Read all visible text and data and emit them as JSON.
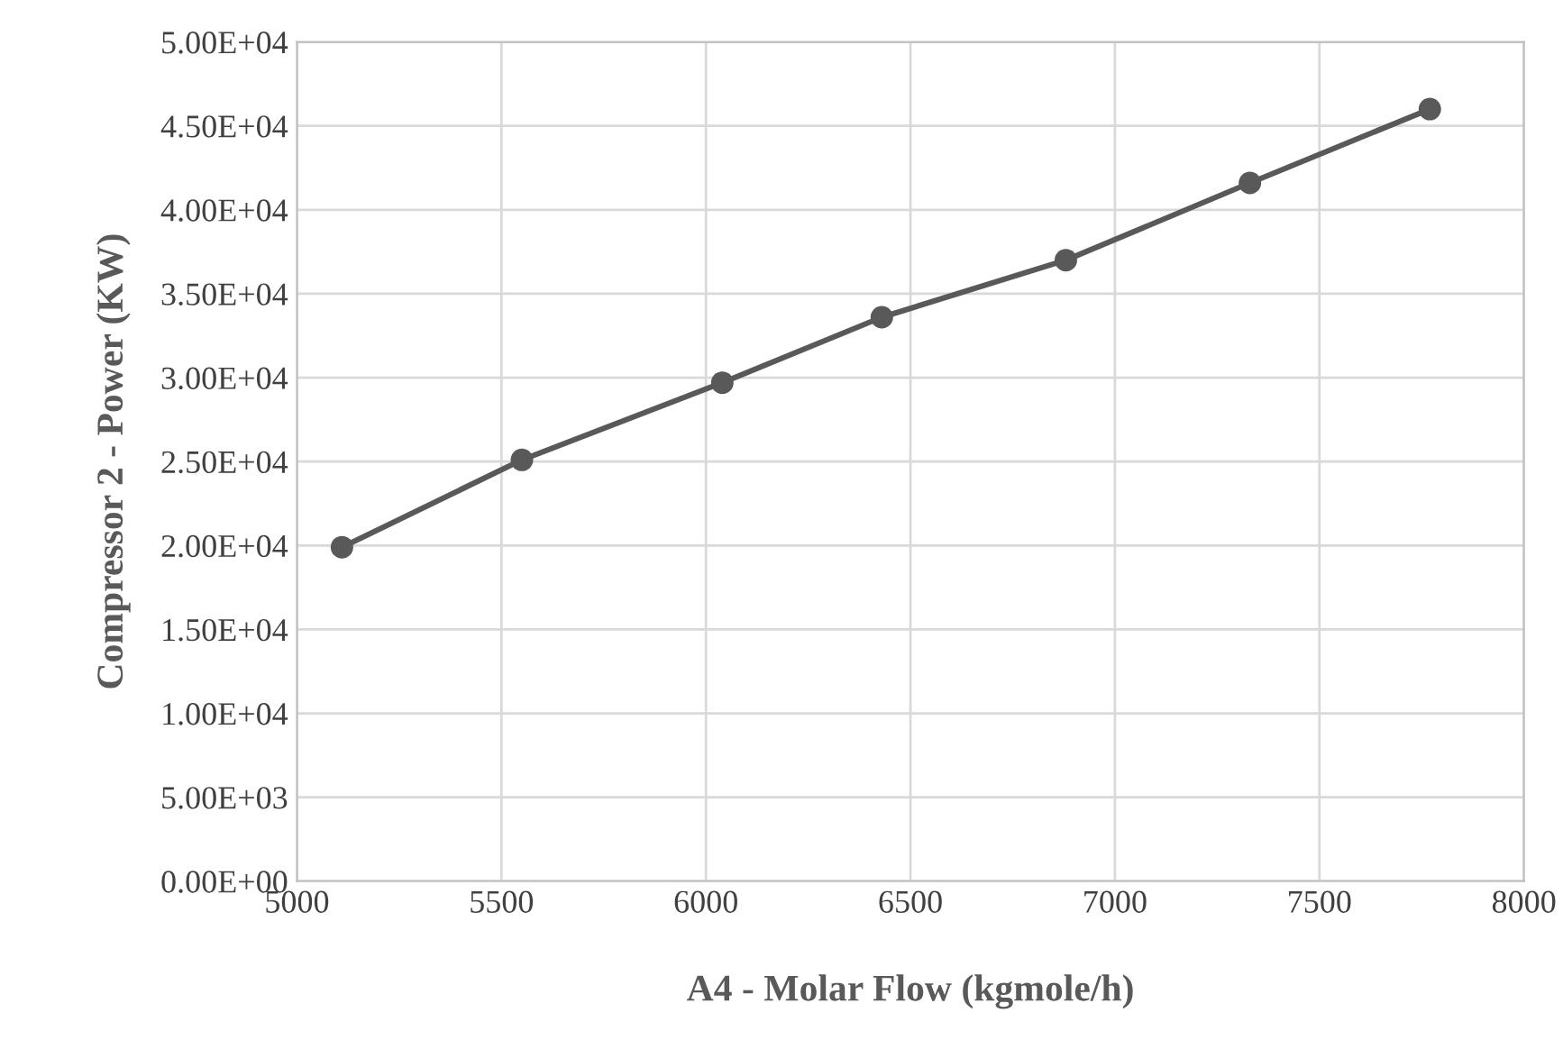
{
  "chart_data": {
    "type": "line",
    "xlabel": "A4 - Molar Flow (kgmole/h)",
    "ylabel": "Compressor 2 - Power (KW)",
    "x": [
      5110,
      5550,
      6040,
      6430,
      6880,
      7330,
      7770
    ],
    "series": [
      {
        "color": "#595959",
        "values": [
          19900,
          25100,
          29700,
          33600,
          37000,
          41600,
          46000
        ]
      }
    ],
    "xlim": [
      5000,
      8000
    ],
    "xticks": [
      5000,
      5500,
      6000,
      6500,
      7000,
      7500,
      8000
    ],
    "ylim": [
      0,
      50000
    ],
    "yticks": [
      {
        "value": 0,
        "label": "0.00E+00"
      },
      {
        "value": 5000,
        "label": "5.00E+03"
      },
      {
        "value": 10000,
        "label": "1.00E+04"
      },
      {
        "value": 15000,
        "label": "1.50E+04"
      },
      {
        "value": 20000,
        "label": "2.00E+04"
      },
      {
        "value": 25000,
        "label": "2.50E+04"
      },
      {
        "value": 30000,
        "label": "3.00E+04"
      },
      {
        "value": 35000,
        "label": "3.50E+04"
      },
      {
        "value": 40000,
        "label": "4.00E+04"
      },
      {
        "value": 45000,
        "label": "4.50E+04"
      },
      {
        "value": 50000,
        "label": "5.00E+04"
      }
    ],
    "grid": true,
    "marker": "circle",
    "line_style": "solid"
  }
}
